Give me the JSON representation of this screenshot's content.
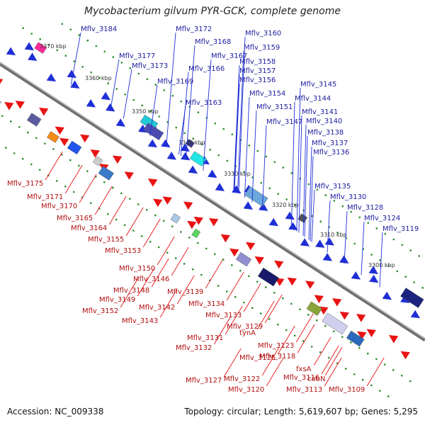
{
  "title": "Mycobacterium gilvum PYR-GCK, complete genome",
  "footer": {
    "accession": "Accession: NC_009338",
    "summary": "Topology: circular; Length: 5,619,607 bp; Genes: 5,295"
  },
  "colors": {
    "forward": "#1f2fd6",
    "reverse": "#e81313",
    "backbone": "#777777",
    "scale_dots": "#2a8a2a"
  },
  "scale_labels": [
    "3370 kbp",
    "3360 kbp",
    "3350 kbp",
    "3340 kbp",
    "3330 kbp",
    "3320 kbp",
    "3310 kbp",
    "3300 kbp"
  ],
  "top_labels": [
    "Mflv_3184",
    "Mflv_3172",
    "Mflv_3168",
    "Mflv_3177",
    "Mflv_3173",
    "Mflv_3167",
    "Mflv_3166",
    "Mflv_3169",
    "Mflv_3163",
    "Mflv_3160",
    "Mflv_3159",
    "Mflv_3158",
    "Mflv_3157",
    "Mflv_3156",
    "Mflv_3154",
    "Mflv_3151",
    "Mflv_3147",
    "Mflv_3145",
    "Mflv_3144",
    "Mflv_3141",
    "Mflv_3140",
    "Mflv_3138",
    "Mflv_3137",
    "Mflv_3136",
    "Mflv_3135",
    "Mflv_3130",
    "Mflv_3128",
    "Mflv_3124",
    "Mflv_3119"
  ],
  "bottom_labels": [
    "Mflv_3175",
    "Mflv_3171",
    "Mflv_3170",
    "Mflv_3165",
    "Mflv_3164",
    "Mflv_3155",
    "Mflv_3153",
    "Mflv_3150",
    "Mflv_3146",
    "Mflv_3148",
    "Mflv_3149",
    "Mflv_3152",
    "Mflv_3142",
    "Mflv_3143",
    "Mflv_3139",
    "Mflv_3134",
    "Mflv_3133",
    "Mflv_3129",
    "Mflv_3131",
    "Mflv_3132",
    "tynA",
    "Mflv_3123",
    "Mflv_3125",
    "Mflv_3118",
    "Mflv_3127",
    "Mflv_3122",
    "Mflv_3116",
    "Mflv_3120",
    "Mflv_3113",
    "fxsA",
    "cobN",
    "Mflv_3109"
  ]
}
